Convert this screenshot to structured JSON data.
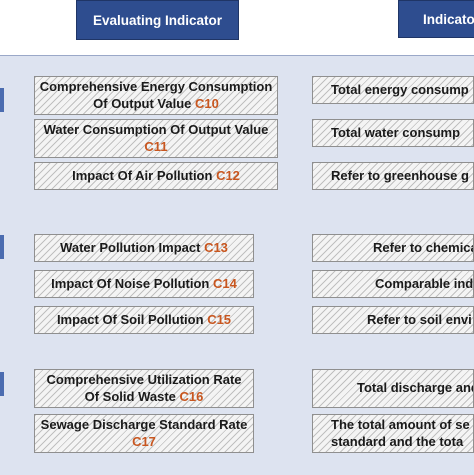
{
  "headers": {
    "left": "Evaluating Indicator",
    "right": "Indicato"
  },
  "indicators": [
    {
      "text": "Comprehensive Energy Consumption Of Output Value",
      "code": "C10"
    },
    {
      "text": "Water Consumption Of Output Value",
      "code": "C11"
    },
    {
      "text": "Impact Of Air Pollution",
      "code": "C12"
    },
    {
      "text": "Water Pollution Impact",
      "code": "C13"
    },
    {
      "text": "Impact Of Noise Pollution",
      "code": "C14"
    },
    {
      "text": "Impact Of Soil Pollution",
      "code": "C15"
    },
    {
      "text": "Comprehensive Utilization Rate Of Solid Waste",
      "code": "C16"
    },
    {
      "text": "Sewage Discharge Standard Rate",
      "code": "C17"
    }
  ],
  "descriptions": [
    {
      "line1": "Total energy consump",
      "line2": ""
    },
    {
      "line1": "Total water consump",
      "line2": ""
    },
    {
      "line1": "Refer to greenhouse g",
      "line2": ""
    },
    {
      "line1": "Refer to chemical",
      "line2": ""
    },
    {
      "line1": "Comparable ind",
      "line2": ""
    },
    {
      "line1": "Refer to soil envi",
      "line2": ""
    },
    {
      "line1": "Total discharge and",
      "line2": ""
    },
    {
      "line1": "The total amount of se",
      "line2": "standard and the tota"
    }
  ],
  "colors": {
    "header_bg": "#2e4d8f",
    "panel_bg": "#dde3f0",
    "code_color": "#c8561f"
  }
}
